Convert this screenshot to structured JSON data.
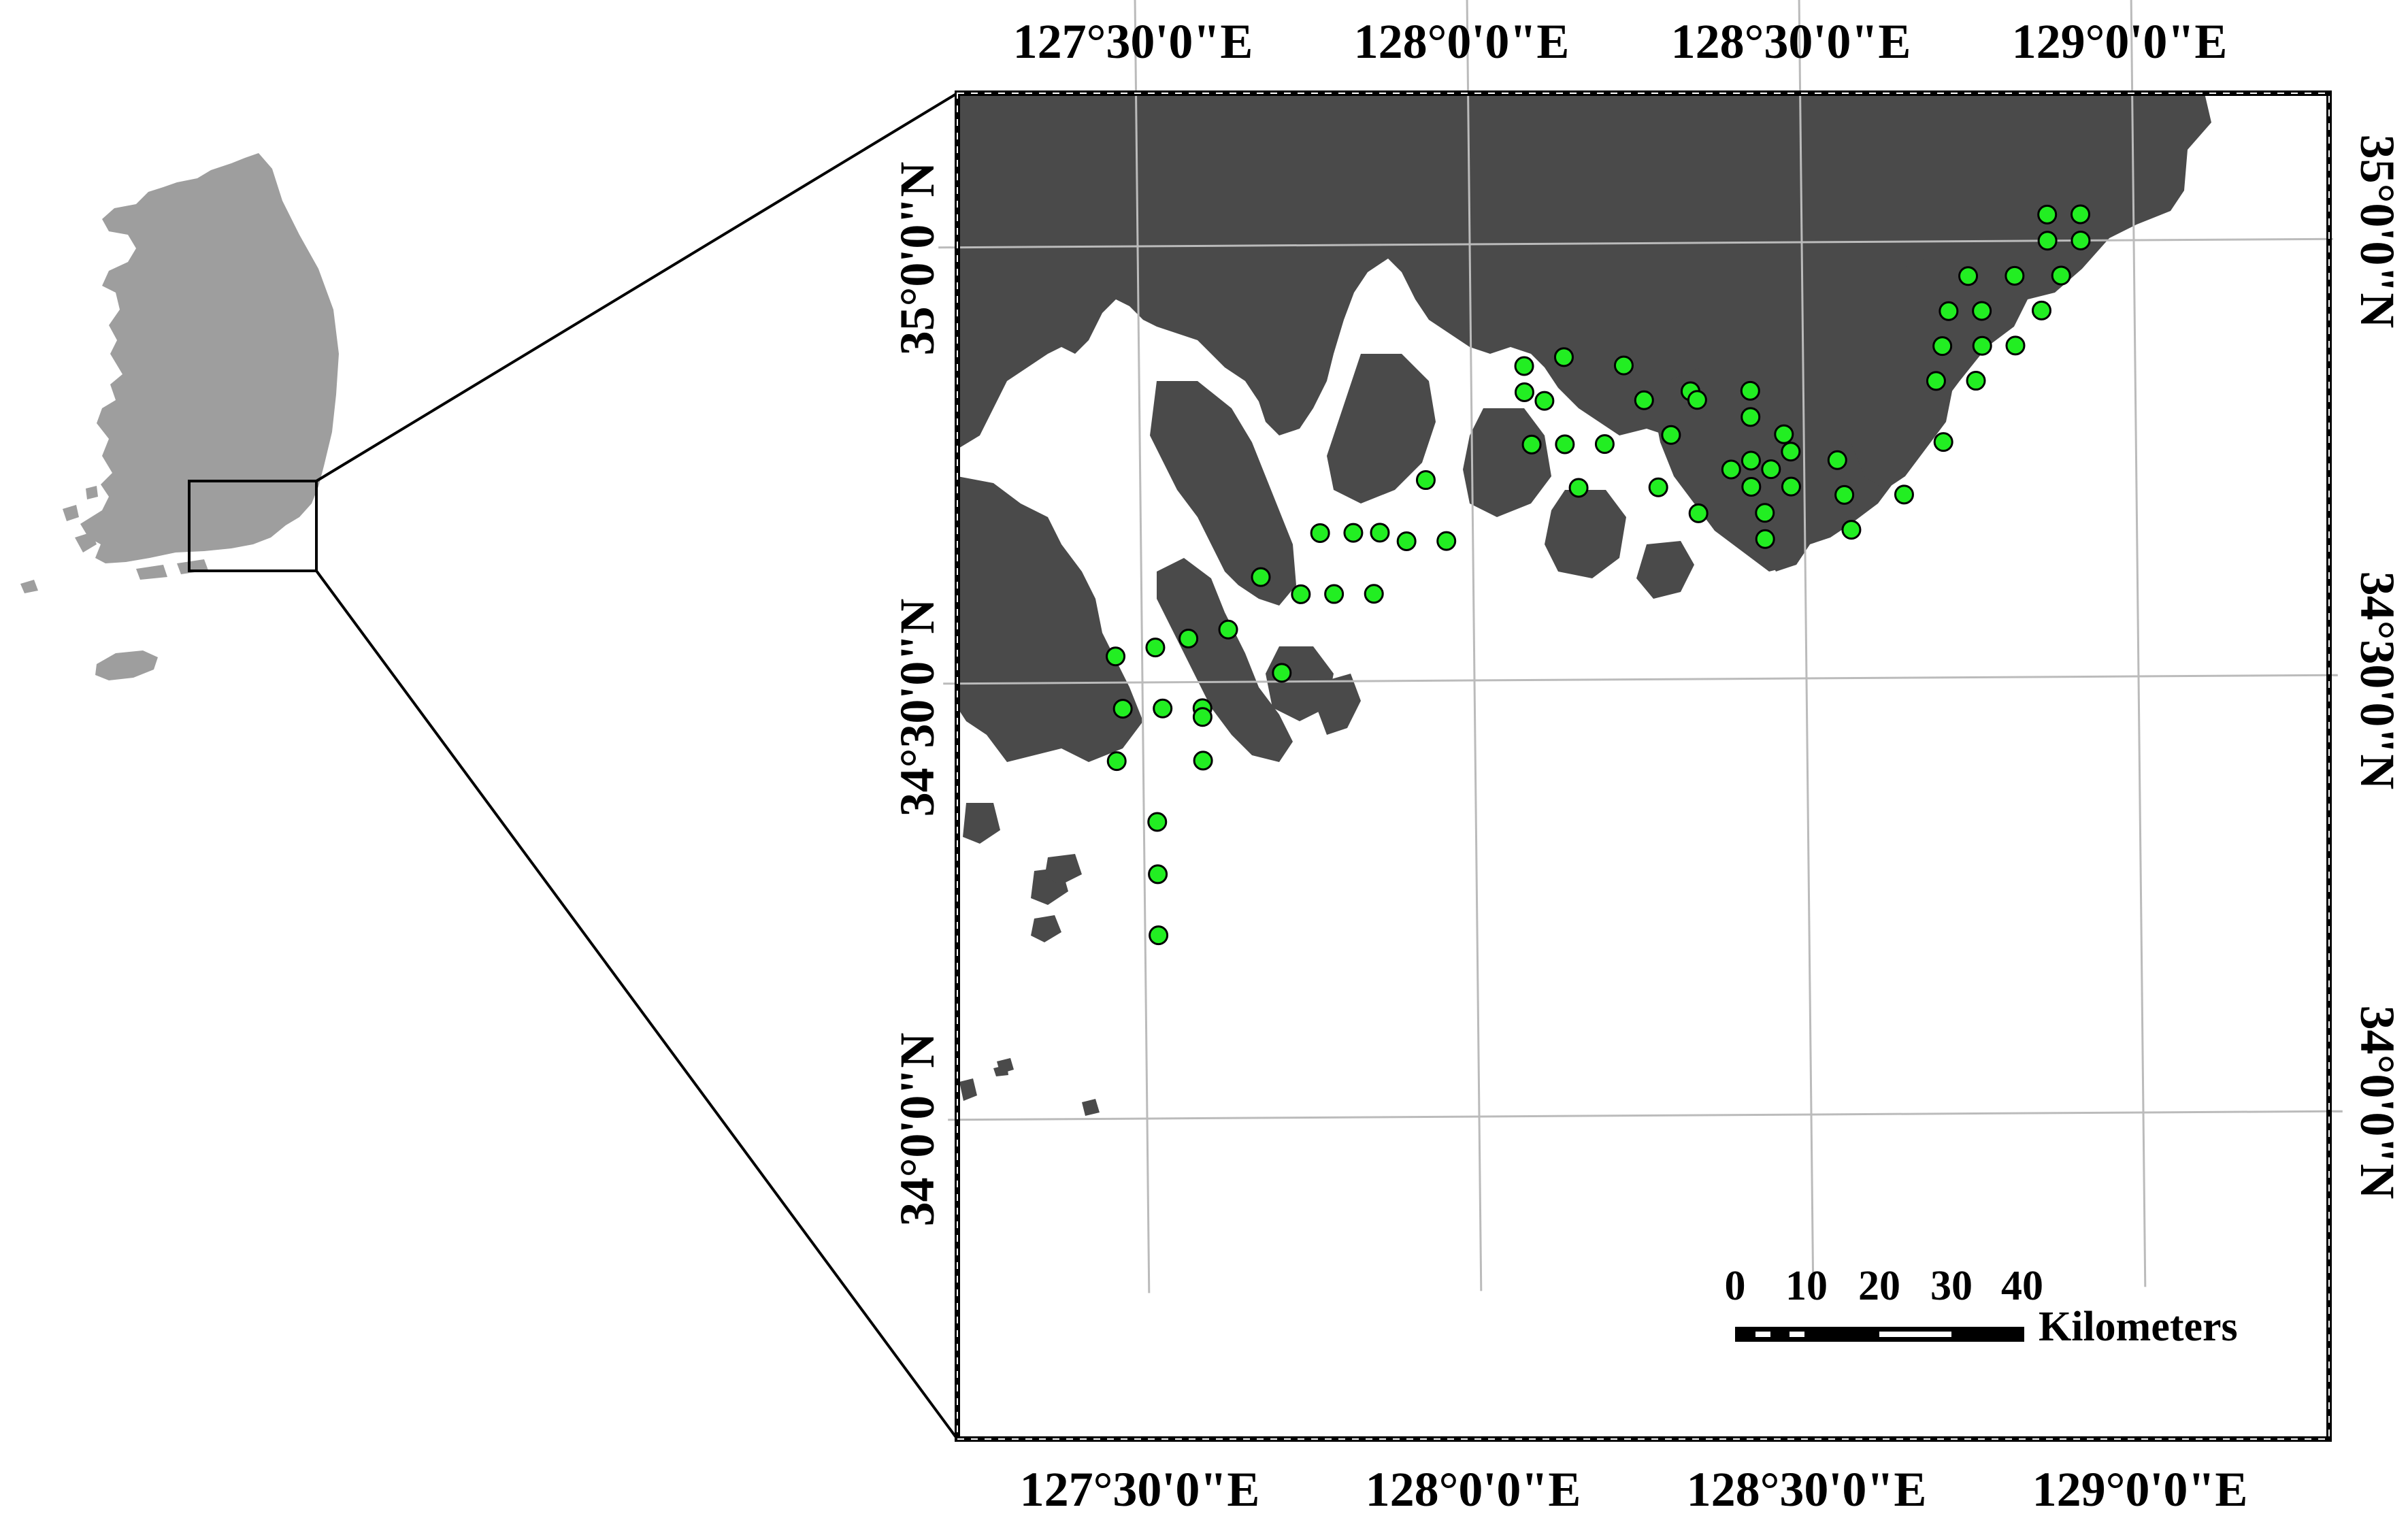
{
  "figure": {
    "overview_region": "korean-peninsula",
    "colors": {
      "land": "#4a4a4a",
      "overview_land": "#9e9e9e",
      "sea": "#ffffff",
      "station_fill": "#22ee22",
      "station_stroke": "#000000",
      "graticule": "#bbbbbb",
      "frame": "#000000"
    },
    "graticule": {
      "longitude_labels": [
        "127°30'0\"E",
        "128°0'0\"E",
        "128°30'0\"E",
        "129°0'0\"E"
      ],
      "latitude_labels": [
        "35°0'0\"N",
        "34°30'0\"N",
        "34°0'0\"N"
      ]
    },
    "scale_bar": {
      "ticks": [
        "0",
        "10",
        "20",
        "30",
        "40"
      ],
      "unit": "Kilometers"
    },
    "stations": [
      {
        "lon": 128.87,
        "lat": 35.03
      },
      {
        "lon": 128.92,
        "lat": 35.03
      },
      {
        "lon": 128.87,
        "lat": 35.0
      },
      {
        "lon": 128.92,
        "lat": 35.0
      },
      {
        "lon": 128.75,
        "lat": 34.96
      },
      {
        "lon": 128.82,
        "lat": 34.96
      },
      {
        "lon": 128.89,
        "lat": 34.96
      },
      {
        "lon": 128.72,
        "lat": 34.92
      },
      {
        "lon": 128.77,
        "lat": 34.92
      },
      {
        "lon": 128.86,
        "lat": 34.92
      },
      {
        "lon": 128.71,
        "lat": 34.88
      },
      {
        "lon": 128.77,
        "lat": 34.88
      },
      {
        "lon": 128.82,
        "lat": 34.88
      },
      {
        "lon": 128.7,
        "lat": 34.84
      },
      {
        "lon": 128.76,
        "lat": 34.84
      },
      {
        "lon": 128.71,
        "lat": 34.77
      },
      {
        "lon": 128.08,
        "lat": 34.86
      },
      {
        "lon": 128.14,
        "lat": 34.87
      },
      {
        "lon": 128.23,
        "lat": 34.86
      },
      {
        "lon": 128.08,
        "lat": 34.83
      },
      {
        "lon": 128.11,
        "lat": 34.82
      },
      {
        "lon": 128.26,
        "lat": 34.82
      },
      {
        "lon": 128.33,
        "lat": 34.83
      },
      {
        "lon": 128.34,
        "lat": 34.82
      },
      {
        "lon": 128.42,
        "lat": 34.83
      },
      {
        "lon": 128.42,
        "lat": 34.8
      },
      {
        "lon": 128.09,
        "lat": 34.77
      },
      {
        "lon": 128.14,
        "lat": 34.77
      },
      {
        "lon": 128.2,
        "lat": 34.77
      },
      {
        "lon": 128.3,
        "lat": 34.78
      },
      {
        "lon": 128.47,
        "lat": 34.78
      },
      {
        "lon": 128.39,
        "lat": 34.74
      },
      {
        "lon": 128.42,
        "lat": 34.75
      },
      {
        "lon": 128.45,
        "lat": 34.74
      },
      {
        "lon": 128.48,
        "lat": 34.76
      },
      {
        "lon": 128.55,
        "lat": 34.75
      },
      {
        "lon": 128.42,
        "lat": 34.72
      },
      {
        "lon": 128.48,
        "lat": 34.72
      },
      {
        "lon": 128.16,
        "lat": 34.72
      },
      {
        "lon": 128.28,
        "lat": 34.72
      },
      {
        "lon": 128.56,
        "lat": 34.71
      },
      {
        "lon": 128.65,
        "lat": 34.71
      },
      {
        "lon": 128.44,
        "lat": 34.69
      },
      {
        "lon": 128.34,
        "lat": 34.69
      },
      {
        "lon": 128.57,
        "lat": 34.67
      },
      {
        "lon": 128.44,
        "lat": 34.66
      },
      {
        "lon": 127.93,
        "lat": 34.73
      },
      {
        "lon": 127.77,
        "lat": 34.67
      },
      {
        "lon": 127.82,
        "lat": 34.67
      },
      {
        "lon": 127.86,
        "lat": 34.67
      },
      {
        "lon": 127.9,
        "lat": 34.66
      },
      {
        "lon": 127.96,
        "lat": 34.66
      },
      {
        "lon": 127.68,
        "lat": 34.62
      },
      {
        "lon": 127.74,
        "lat": 34.6
      },
      {
        "lon": 127.79,
        "lat": 34.6
      },
      {
        "lon": 127.85,
        "lat": 34.6
      },
      {
        "lon": 127.63,
        "lat": 34.56
      },
      {
        "lon": 127.57,
        "lat": 34.55
      },
      {
        "lon": 127.52,
        "lat": 34.54
      },
      {
        "lon": 127.46,
        "lat": 34.53
      },
      {
        "lon": 127.71,
        "lat": 34.51
      },
      {
        "lon": 127.47,
        "lat": 34.47
      },
      {
        "lon": 127.53,
        "lat": 34.47
      },
      {
        "lon": 127.59,
        "lat": 34.47
      },
      {
        "lon": 127.59,
        "lat": 34.46
      },
      {
        "lon": 127.46,
        "lat": 34.41
      },
      {
        "lon": 127.59,
        "lat": 34.41
      },
      {
        "lon": 127.52,
        "lat": 34.34
      },
      {
        "lon": 127.52,
        "lat": 34.28
      },
      {
        "lon": 127.52,
        "lat": 34.21
      }
    ]
  }
}
